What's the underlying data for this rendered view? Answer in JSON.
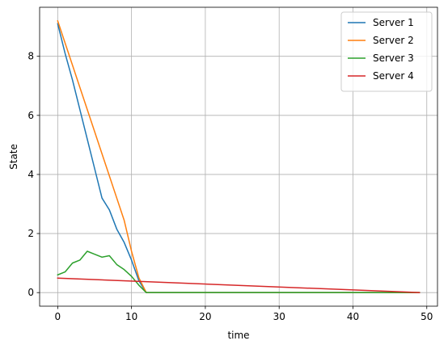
{
  "chart_data": {
    "type": "line",
    "xlabel": "time",
    "ylabel": "State",
    "xlim": [
      -2.45,
      51.45
    ],
    "ylim": [
      -0.46,
      9.66
    ],
    "xticks": [
      0,
      10,
      20,
      30,
      40,
      50
    ],
    "yticks": [
      0,
      2,
      4,
      6,
      8
    ],
    "grid": true,
    "legend_position": "upper right",
    "series": [
      {
        "name": "Server 1",
        "color": "#1f77b4",
        "x": [
          0,
          1,
          2,
          3,
          4,
          5,
          6,
          7,
          8,
          9,
          10,
          11,
          12,
          49
        ],
        "y": [
          9.1,
          8.1,
          7.2,
          6.2,
          5.2,
          4.2,
          3.2,
          2.8,
          2.15,
          1.7,
          1.1,
          0.4,
          0.0,
          0.0
        ]
      },
      {
        "name": "Server 2",
        "color": "#ff7f0e",
        "x": [
          0,
          1,
          2,
          3,
          4,
          5,
          6,
          7,
          8,
          9,
          10,
          11,
          12,
          49
        ],
        "y": [
          9.2,
          8.45,
          7.7,
          6.95,
          6.2,
          5.45,
          4.7,
          3.95,
          3.2,
          2.45,
          1.4,
          0.5,
          0.0,
          0.0
        ]
      },
      {
        "name": "Server 3",
        "color": "#2ca02c",
        "x": [
          0,
          1,
          2,
          3,
          4,
          5,
          6,
          7,
          8,
          9,
          10,
          11,
          12,
          49
        ],
        "y": [
          0.6,
          0.7,
          1.0,
          1.1,
          1.4,
          1.3,
          1.2,
          1.25,
          0.95,
          0.78,
          0.55,
          0.25,
          0.0,
          0.0
        ]
      },
      {
        "name": "Server 4",
        "color": "#d62728",
        "x": [
          0,
          49
        ],
        "y": [
          0.49,
          0.0
        ]
      }
    ]
  }
}
